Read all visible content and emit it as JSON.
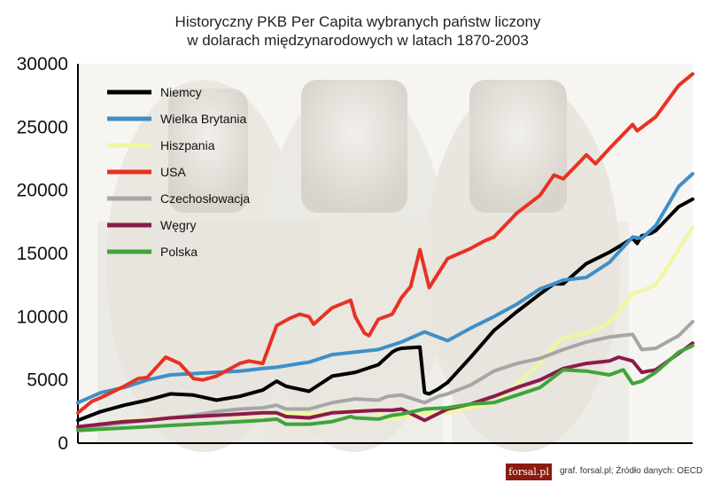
{
  "chart_data": {
    "type": "line",
    "title": [
      "Historyczny PKB Per Capita wybranych państw liczony",
      "w dolarach międzynarodowych w latach 1870-2003"
    ],
    "xlabel": "",
    "ylabel": "",
    "xlim": [
      1870,
      2003
    ],
    "ylim": [
      0,
      30000
    ],
    "yticks": [
      0,
      5000,
      10000,
      15000,
      20000,
      25000,
      30000
    ],
    "grid": false,
    "legend_position": "top-left",
    "series": [
      {
        "name": "Niemcy",
        "color": "#000000",
        "x": [
          1870,
          1875,
          1880,
          1885,
          1890,
          1895,
          1900,
          1905,
          1910,
          1913,
          1915,
          1920,
          1925,
          1930,
          1935,
          1938,
          1939,
          1940,
          1944,
          1945,
          1946,
          1948,
          1950,
          1955,
          1960,
          1965,
          1970,
          1973,
          1975,
          1980,
          1985,
          1990,
          1991,
          1992,
          1994,
          1995,
          2000,
          2003
        ],
        "y": [
          1800,
          2500,
          3000,
          3400,
          3900,
          3800,
          3400,
          3700,
          4200,
          4900,
          4500,
          4100,
          5300,
          5600,
          6200,
          7200,
          7400,
          7500,
          7600,
          4000,
          3900,
          4300,
          4800,
          6800,
          8900,
          10400,
          11800,
          12600,
          12600,
          14200,
          15100,
          16200,
          15800,
          16400,
          16600,
          16800,
          18700,
          19300
        ]
      },
      {
        "name": "Wielka Brytania",
        "color": "#3f8fc8",
        "x": [
          1870,
          1875,
          1880,
          1885,
          1890,
          1895,
          1900,
          1905,
          1910,
          1913,
          1918,
          1920,
          1925,
          1930,
          1935,
          1940,
          1945,
          1950,
          1955,
          1960,
          1965,
          1970,
          1973,
          1975,
          1980,
          1985,
          1990,
          1992,
          1995,
          2000,
          2003
        ],
        "y": [
          3200,
          4000,
          4400,
          5000,
          5400,
          5500,
          5600,
          5700,
          5900,
          6000,
          6300,
          6400,
          7000,
          7200,
          7400,
          8000,
          8800,
          8100,
          9100,
          10000,
          11000,
          12200,
          12600,
          12900,
          13100,
          14300,
          16300,
          16200,
          17200,
          20300,
          21300
        ]
      },
      {
        "name": "Hiszpania",
        "color": "#eef7a0",
        "x": [
          1870,
          1875,
          1880,
          1885,
          1890,
          1895,
          1900,
          1905,
          1910,
          1913,
          1918,
          1920,
          1925,
          1930,
          1935,
          1936,
          1938,
          1940,
          1945,
          1950,
          1955,
          1960,
          1965,
          1970,
          1973,
          1975,
          1980,
          1985,
          1990,
          1995,
          2000,
          2003
        ],
        "y": [
          1200,
          1500,
          1800,
          1900,
          2000,
          2100,
          2200,
          2200,
          2300,
          2300,
          2400,
          2300,
          2500,
          2600,
          2600,
          2000,
          1900,
          2000,
          2300,
          2400,
          2800,
          3100,
          4700,
          6300,
          7700,
          8300,
          8700,
          9500,
          11800,
          12500,
          15300,
          17100
        ]
      },
      {
        "name": "USA",
        "color": "#e83222",
        "x": [
          1870,
          1873,
          1875,
          1880,
          1883,
          1885,
          1889,
          1892,
          1895,
          1897,
          1900,
          1905,
          1907,
          1910,
          1913,
          1916,
          1918,
          1920,
          1921,
          1925,
          1929,
          1930,
          1932,
          1933,
          1935,
          1938,
          1940,
          1942,
          1944,
          1946,
          1950,
          1955,
          1958,
          1960,
          1965,
          1970,
          1973,
          1975,
          1979,
          1980,
          1982,
          1985,
          1990,
          1991,
          1995,
          2000,
          2003
        ],
        "y": [
          2400,
          3300,
          3600,
          4500,
          5100,
          5200,
          6800,
          6300,
          5100,
          5000,
          5300,
          6300,
          6500,
          6300,
          9300,
          9900,
          10200,
          10000,
          9400,
          10700,
          11300,
          10000,
          8700,
          8500,
          9800,
          10200,
          11500,
          12400,
          15300,
          12300,
          14600,
          15400,
          16000,
          16300,
          18200,
          19600,
          21200,
          20900,
          22400,
          22800,
          22100,
          23300,
          25200,
          24700,
          25800,
          28300,
          29200
        ]
      },
      {
        "name": "Czechosłowacja",
        "color": "#a6a6a6",
        "x": [
          1870,
          1875,
          1880,
          1885,
          1890,
          1895,
          1900,
          1905,
          1910,
          1913,
          1915,
          1920,
          1925,
          1930,
          1935,
          1937,
          1940,
          1945,
          1948,
          1950,
          1955,
          1960,
          1965,
          1970,
          1975,
          1980,
          1985,
          1990,
          1992,
          1995,
          2000,
          2003
        ],
        "y": [
          1200,
          1400,
          1600,
          1800,
          2000,
          2200,
          2500,
          2700,
          2800,
          3000,
          2700,
          2700,
          3200,
          3500,
          3400,
          3700,
          3800,
          3200,
          3700,
          3900,
          4600,
          5700,
          6300,
          6700,
          7400,
          8000,
          8400,
          8600,
          7400,
          7500,
          8500,
          9600
        ]
      },
      {
        "name": "Węgry",
        "color": "#8b1a4c",
        "x": [
          1870,
          1875,
          1880,
          1885,
          1890,
          1895,
          1900,
          1905,
          1910,
          1913,
          1915,
          1920,
          1925,
          1930,
          1935,
          1938,
          1940,
          1945,
          1950,
          1955,
          1960,
          1965,
          1970,
          1975,
          1980,
          1985,
          1987,
          1990,
          1992,
          1995,
          2000,
          2003
        ],
        "y": [
          1300,
          1500,
          1700,
          1800,
          2000,
          2100,
          2200,
          2300,
          2400,
          2400,
          2100,
          2000,
          2400,
          2500,
          2600,
          2600,
          2700,
          1800,
          2700,
          3100,
          3700,
          4400,
          5000,
          5900,
          6300,
          6500,
          6800,
          6500,
          5600,
          5800,
          7100,
          7900
        ]
      },
      {
        "name": "Polska",
        "color": "#3fa43a",
        "x": [
          1870,
          1875,
          1880,
          1885,
          1890,
          1895,
          1900,
          1905,
          1910,
          1913,
          1915,
          1920,
          1925,
          1929,
          1930,
          1935,
          1938,
          1940,
          1945,
          1950,
          1955,
          1960,
          1965,
          1970,
          1975,
          1980,
          1985,
          1988,
          1990,
          1992,
          1995,
          2000,
          2003
        ],
        "y": [
          1000,
          1100,
          1200,
          1300,
          1400,
          1500,
          1600,
          1700,
          1800,
          1900,
          1500,
          1500,
          1700,
          2100,
          2000,
          1900,
          2200,
          2300,
          2700,
          2800,
          3100,
          3200,
          3800,
          4400,
          5800,
          5700,
          5400,
          5800,
          4700,
          4900,
          5600,
          7200,
          7700
        ]
      }
    ]
  },
  "brand": {
    "logo_text": "forsal.pl"
  },
  "footer": {
    "credit": "graf. forsal.pl; Źródło danych: OECD"
  }
}
